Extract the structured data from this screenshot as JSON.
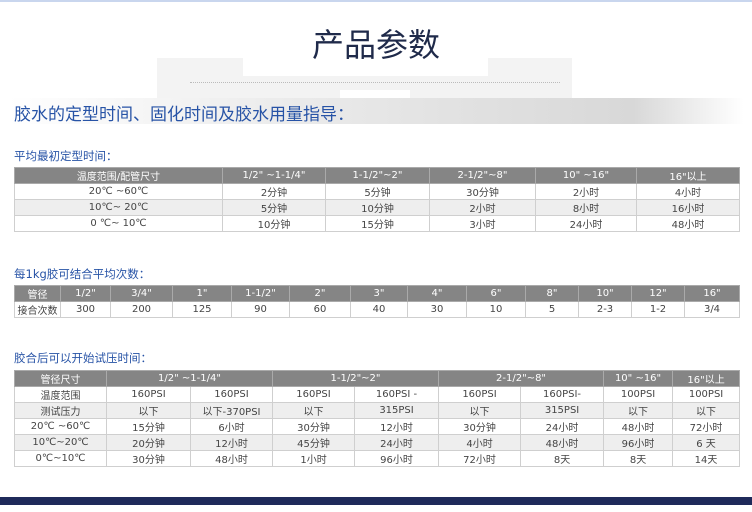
{
  "page_title": "产品参数",
  "section_title": "胶水的定型时间、固化时间及胶水用量指导：",
  "table1": {
    "caption": "平均最初定型时间：",
    "headers": [
      "温度范围/配管尺寸",
      "1/2\" ~1-1/4\"",
      "1-1/2\"~2\"",
      "2-1/2\"~8\"",
      "10\" ~16\"",
      "16\"以上"
    ],
    "rows": [
      [
        "20℃ ~60℃",
        "2分钟",
        "5分钟",
        "30分钟",
        "2小时",
        "4小时"
      ],
      [
        "10℃~ 20℃",
        "5分钟",
        "10分钟",
        "2小时",
        "8小时",
        "16小时"
      ],
      [
        "0 ℃~ 10℃",
        "10分钟",
        "15分钟",
        "3小时",
        "24小时",
        "48小时"
      ]
    ]
  },
  "table2": {
    "caption": "每1kg胶可结合平均次数：",
    "headers": [
      "管径",
      "1/2\"",
      "3/4\"",
      "1\"",
      "1-1/2\"",
      "2\"",
      "3\"",
      "4\"",
      "6\"",
      "8\"",
      "10\"",
      "12\"",
      "16\""
    ],
    "row": [
      "接合次数",
      "300",
      "200",
      "125",
      "90",
      "60",
      "40",
      "30",
      "10",
      "5",
      "2-3",
      "1-2",
      "3/4"
    ]
  },
  "table3": {
    "caption": "胶合后可以开始试压时间：",
    "headers": [
      "管径尺寸",
      "1/2\" ~1-1/4\"",
      "1-1/2\"~2\"",
      "2-1/2\"~8\"",
      "10\" ~16\"",
      "16\"以上"
    ],
    "rows": [
      [
        "温度范围",
        "160PSI",
        "160PSI",
        "160PSI",
        "160PSI -",
        "160PSI",
        "160PSI-",
        "100PSI",
        "100PSI"
      ],
      [
        "测试压力",
        "以下",
        "以下-370PSI",
        "以下",
        "315PSI",
        "以下",
        "315PSI",
        "以下",
        "以下"
      ],
      [
        "20℃ ~60℃",
        "15分钟",
        "6小时",
        "30分钟",
        "12小时",
        "30分钟",
        "24小时",
        "48小时",
        "72小时"
      ],
      [
        "10℃~20℃",
        "20分钟",
        "12小时",
        "45分钟",
        "24小时",
        "4小时",
        "48小时",
        "96小时",
        "6 天"
      ],
      [
        "0℃~10℃",
        "30分钟",
        "48小时",
        "1小时",
        "96小时",
        "72小时",
        "8天",
        "8天",
        "14天"
      ]
    ]
  }
}
